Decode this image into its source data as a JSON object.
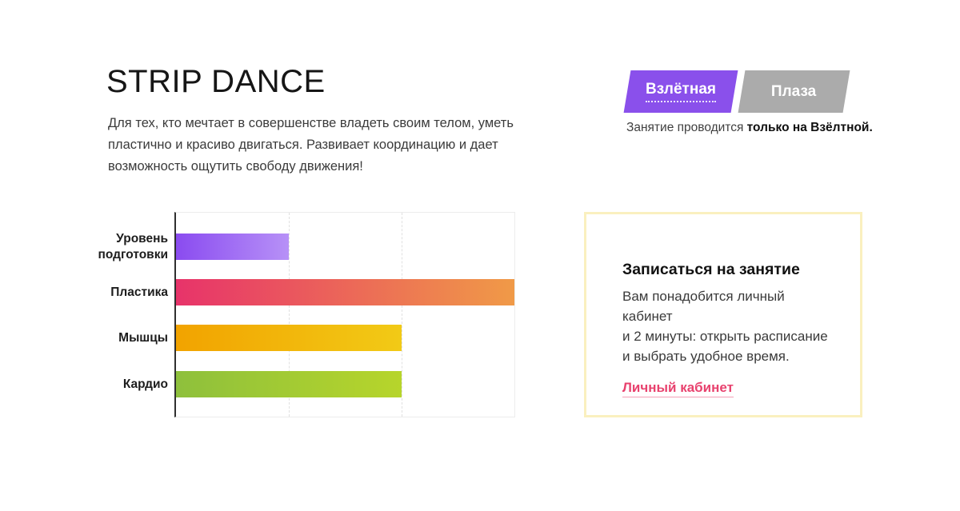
{
  "header": {
    "title": "STRIP DANCE",
    "description": "Для тех, кто мечтает в совершенстве владеть своим телом, уметь пластично и красиво двигаться. Развивает координацию и дает возможность ощутить свободу движения!"
  },
  "locations": {
    "tabs": [
      {
        "label": "Взлётная",
        "active": true,
        "color": "#8a50eb"
      },
      {
        "label": "Плаза",
        "active": false,
        "color": "#ababab"
      }
    ],
    "note_prefix": "Занятие проводится ",
    "note_bold": "только на Взёлтной."
  },
  "chart_data": {
    "type": "bar",
    "orientation": "horizontal",
    "categories": [
      "Уровень подготовки",
      "Пластика",
      "Мышцы",
      "Кардио"
    ],
    "values": [
      1,
      3,
      2,
      2
    ],
    "xlim": [
      0,
      3
    ],
    "gridlines_x": [
      1,
      2
    ],
    "grid_style": "dashed",
    "legend": "none",
    "axis_color": "#2f2f2f",
    "bar_colors": [
      [
        "#8a4bf0",
        "#b791f7"
      ],
      [
        "#e7336a",
        "#f09a47"
      ],
      [
        "#f2a300",
        "#f2ca16"
      ],
      [
        "#8ec03c",
        "#b7d52b"
      ]
    ]
  },
  "signup_card": {
    "title": "Записаться на занятие",
    "body_lines": [
      "Вам понадобится личный кабинет",
      "и 2 минуты: открыть расписание",
      "и выбрать удобное время."
    ],
    "link_label": "Личный кабинет",
    "link_color": "#e8426e",
    "border_color": "#faf0bf"
  }
}
